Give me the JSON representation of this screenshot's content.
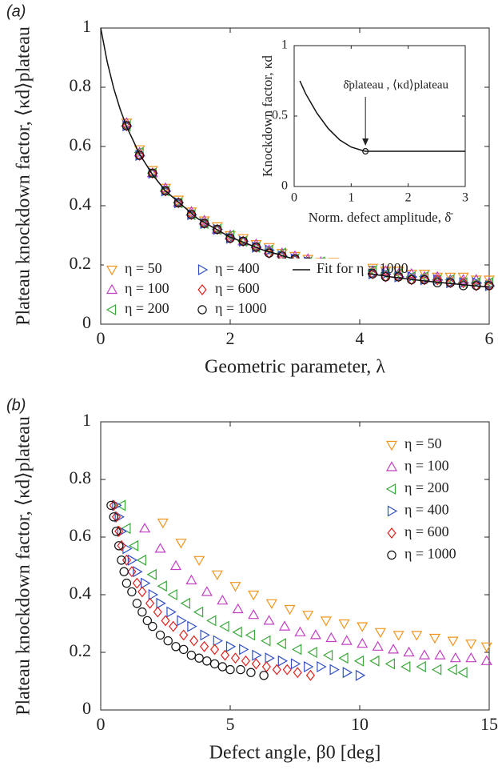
{
  "chart_data": [
    {
      "type": "scatter",
      "panel_label": "(a)",
      "y_label": "Plateau knockdown factor, ⟨κd⟩plateau",
      "x_label": "Geometric parameter, λ",
      "xlim": [
        0,
        6
      ],
      "ylim": [
        0,
        1
      ],
      "xticks": [
        0,
        2,
        4,
        6
      ],
      "yticks": [
        0,
        0.2,
        0.4,
        0.6,
        0.8,
        1
      ],
      "legend": "lower left",
      "x": [
        0.4,
        0.6,
        0.8,
        1.0,
        1.2,
        1.4,
        1.6,
        1.8,
        2.0,
        2.2,
        2.4,
        2.6,
        2.8,
        3.0,
        3.2,
        3.4,
        3.6,
        3.8,
        4.0,
        4.2,
        4.4,
        4.6,
        4.8,
        5.0,
        5.2,
        5.4,
        5.6,
        5.8,
        6.0
      ],
      "series": [
        {
          "name": "η = 50",
          "color": "#f0951e",
          "marker": "triangle-down",
          "values": [
            0.68,
            0.59,
            0.52,
            0.46,
            0.42,
            0.38,
            0.35,
            0.33,
            0.3,
            0.29,
            0.27,
            0.26,
            0.24,
            0.23,
            0.22,
            0.21,
            0.21,
            0.2,
            0.19,
            0.19,
            0.18,
            0.18,
            0.17,
            0.17,
            0.16,
            0.16,
            0.16,
            0.15,
            0.15
          ]
        },
        {
          "name": "η = 100",
          "color": "#c23fc2",
          "marker": "triangle-up",
          "values": [
            0.68,
            0.58,
            0.51,
            0.46,
            0.41,
            0.38,
            0.35,
            0.32,
            0.3,
            0.28,
            0.27,
            0.25,
            0.24,
            0.23,
            0.22,
            0.21,
            0.2,
            0.19,
            0.19,
            0.18,
            0.18,
            0.17,
            0.17,
            0.16,
            0.16,
            0.15,
            0.15,
            0.15,
            0.14
          ]
        },
        {
          "name": "η = 200",
          "color": "#3ca83c",
          "marker": "triangle-left",
          "values": [
            0.67,
            0.58,
            0.51,
            0.45,
            0.41,
            0.37,
            0.34,
            0.32,
            0.3,
            0.28,
            0.26,
            0.25,
            0.24,
            0.22,
            0.21,
            0.21,
            0.2,
            0.19,
            0.18,
            0.18,
            0.17,
            0.17,
            0.16,
            0.16,
            0.15,
            0.15,
            0.14,
            0.14,
            0.14
          ]
        },
        {
          "name": "η = 400",
          "color": "#2f4fc4",
          "marker": "triangle-right",
          "values": [
            0.67,
            0.57,
            0.51,
            0.45,
            0.41,
            0.37,
            0.34,
            0.32,
            0.29,
            0.28,
            0.26,
            0.25,
            0.23,
            0.22,
            0.21,
            0.2,
            0.19,
            0.19,
            0.18,
            0.17,
            0.17,
            0.16,
            0.16,
            0.15,
            0.15,
            0.14,
            0.14,
            0.14,
            0.13
          ]
        },
        {
          "name": "η = 600",
          "color": "#e0201e",
          "marker": "diamond",
          "values": [
            0.67,
            0.57,
            0.51,
            0.45,
            0.41,
            0.37,
            0.34,
            0.32,
            0.29,
            0.28,
            0.26,
            0.24,
            0.23,
            0.22,
            0.21,
            0.2,
            0.19,
            0.18,
            0.18,
            0.17,
            0.16,
            0.16,
            0.15,
            0.15,
            0.15,
            0.14,
            0.14,
            0.13,
            0.13
          ]
        },
        {
          "name": "η = 1000",
          "color": "#111111",
          "marker": "circle",
          "values": [
            0.67,
            0.57,
            0.51,
            0.45,
            0.41,
            0.37,
            0.34,
            0.32,
            0.29,
            0.28,
            0.26,
            0.24,
            0.23,
            0.22,
            0.21,
            0.2,
            0.19,
            0.18,
            0.18,
            0.17,
            0.16,
            0.16,
            0.15,
            0.15,
            0.14,
            0.14,
            0.13,
            0.13,
            0.13
          ]
        },
        {
          "name": "Fit for η = 1000",
          "color": "#111111",
          "marker": "line",
          "x": [
            0,
            0.1,
            0.2,
            0.3,
            0.4,
            0.6,
            0.8,
            1,
            1.5,
            2,
            2.5,
            3,
            3.5,
            4,
            4.5,
            5,
            5.5,
            6
          ],
          "values": [
            1,
            0.886,
            0.797,
            0.726,
            0.667,
            0.574,
            0.505,
            0.45,
            0.356,
            0.294,
            0.251,
            0.219,
            0.195,
            0.175,
            0.159,
            0.146,
            0.135,
            0.125
          ]
        }
      ]
    },
    {
      "type": "line",
      "y_label": "Knockdown factor, κd",
      "x_label": "Norm. defect amplitude, δ̄",
      "annotation": "δ̄plateau , ⟨κd⟩plateau",
      "xlim": [
        0,
        3
      ],
      "ylim": [
        0,
        1
      ],
      "xticks": [
        0,
        1,
        2,
        3
      ],
      "yticks": [
        0,
        0.5,
        1
      ],
      "series": [
        {
          "color": "#111111",
          "marker": "line",
          "x": [
            0.1,
            0.2,
            0.4,
            0.6,
            0.8,
            1.0,
            1.2,
            1.25,
            1.5,
            2,
            2.5,
            3
          ],
          "values": [
            0.75,
            0.66,
            0.52,
            0.41,
            0.33,
            0.28,
            0.255,
            0.25,
            0.25,
            0.25,
            0.25,
            0.25
          ]
        },
        {
          "color": "#111111",
          "marker": "circle",
          "x": [
            1.25
          ],
          "values": [
            0.25
          ]
        }
      ]
    },
    {
      "type": "scatter",
      "panel_label": "(b)",
      "y_label": "Plateau knockdown factor, ⟨κd⟩plateau",
      "x_label": "Defect angle, β0 [deg]",
      "xlim": [
        0,
        15
      ],
      "ylim": [
        0,
        1
      ],
      "xticks": [
        0,
        5,
        10,
        15
      ],
      "yticks": [
        0,
        0.2,
        0.4,
        0.6,
        0.8,
        1
      ],
      "legend": "upper right",
      "series": [
        {
          "name": "η = 50",
          "color": "#f0951e",
          "marker": "triangle-down",
          "x": [
            2.4,
            3.1,
            3.8,
            4.5,
            5.2,
            5.9,
            6.6,
            7.3,
            8.0,
            8.7,
            9.4,
            10.1,
            10.8,
            11.5,
            12.2,
            12.9,
            13.6,
            14.3,
            14.9
          ],
          "values": [
            0.65,
            0.58,
            0.52,
            0.47,
            0.43,
            0.4,
            0.37,
            0.35,
            0.33,
            0.31,
            0.3,
            0.29,
            0.27,
            0.26,
            0.26,
            0.25,
            0.24,
            0.23,
            0.22
          ]
        },
        {
          "name": "η = 100",
          "color": "#c23fc2",
          "marker": "triangle-up",
          "x": [
            1.7,
            2.3,
            2.9,
            3.5,
            4.1,
            4.7,
            5.3,
            5.9,
            6.5,
            7.1,
            7.7,
            8.3,
            8.9,
            9.5,
            10.1,
            10.7,
            11.3,
            11.9,
            12.5,
            13.1,
            13.7,
            14.3,
            14.9
          ],
          "values": [
            0.63,
            0.56,
            0.5,
            0.45,
            0.41,
            0.38,
            0.35,
            0.33,
            0.31,
            0.29,
            0.27,
            0.26,
            0.25,
            0.24,
            0.23,
            0.22,
            0.21,
            0.2,
            0.19,
            0.19,
            0.18,
            0.18,
            0.17
          ]
        },
        {
          "name": "η = 200",
          "color": "#3ca83c",
          "marker": "triangle-left",
          "x": [
            0.8,
            1.0,
            1.3,
            1.6,
            2.0,
            2.4,
            2.8,
            3.3,
            3.8,
            4.3,
            4.8,
            5.3,
            5.8,
            6.4,
            7.0,
            7.6,
            8.2,
            8.8,
            9.4,
            10.0,
            10.6,
            11.2,
            11.8,
            12.4,
            13.0,
            13.6,
            14.0
          ],
          "values": [
            0.71,
            0.63,
            0.57,
            0.52,
            0.47,
            0.43,
            0.4,
            0.37,
            0.34,
            0.31,
            0.29,
            0.27,
            0.26,
            0.24,
            0.23,
            0.21,
            0.2,
            0.19,
            0.18,
            0.17,
            0.17,
            0.16,
            0.15,
            0.15,
            0.14,
            0.14,
            0.13
          ]
        },
        {
          "name": "η = 400",
          "color": "#2f4fc4",
          "marker": "triangle-right",
          "x": [
            0.6,
            0.7,
            0.8,
            1.0,
            1.2,
            1.4,
            1.7,
            2.0,
            2.3,
            2.7,
            3.1,
            3.5,
            4.0,
            4.5,
            5.0,
            5.5,
            6.0,
            6.5,
            7.0,
            7.5,
            8.0,
            8.5,
            9.0,
            9.5,
            10.0
          ],
          "values": [
            0.71,
            0.67,
            0.62,
            0.56,
            0.52,
            0.48,
            0.44,
            0.4,
            0.37,
            0.34,
            0.31,
            0.29,
            0.26,
            0.24,
            0.22,
            0.21,
            0.19,
            0.18,
            0.17,
            0.16,
            0.15,
            0.15,
            0.14,
            0.13,
            0.12
          ]
        },
        {
          "name": "η = 600",
          "color": "#e0201e",
          "marker": "diamond",
          "x": [
            0.5,
            0.6,
            0.7,
            0.8,
            1.0,
            1.2,
            1.4,
            1.6,
            1.9,
            2.2,
            2.5,
            2.8,
            3.2,
            3.6,
            4.0,
            4.4,
            4.8,
            5.2,
            5.6,
            6.0,
            6.4,
            6.8,
            7.2,
            7.6,
            8.1
          ],
          "values": [
            0.71,
            0.67,
            0.62,
            0.57,
            0.52,
            0.48,
            0.44,
            0.41,
            0.37,
            0.34,
            0.31,
            0.29,
            0.26,
            0.24,
            0.22,
            0.21,
            0.19,
            0.18,
            0.17,
            0.16,
            0.15,
            0.14,
            0.14,
            0.13,
            0.12
          ]
        },
        {
          "name": "η = 1000",
          "color": "#111111",
          "marker": "circle",
          "x": [
            0.4,
            0.5,
            0.6,
            0.7,
            0.8,
            0.9,
            1.0,
            1.2,
            1.4,
            1.6,
            1.8,
            2.0,
            2.3,
            2.6,
            2.9,
            3.2,
            3.5,
            3.8,
            4.1,
            4.4,
            4.7,
            5.0,
            5.4,
            5.8,
            6.3
          ],
          "values": [
            0.71,
            0.67,
            0.62,
            0.57,
            0.52,
            0.48,
            0.44,
            0.41,
            0.37,
            0.34,
            0.31,
            0.29,
            0.26,
            0.24,
            0.22,
            0.21,
            0.19,
            0.18,
            0.17,
            0.16,
            0.15,
            0.14,
            0.14,
            0.13,
            0.12
          ]
        }
      ]
    }
  ]
}
